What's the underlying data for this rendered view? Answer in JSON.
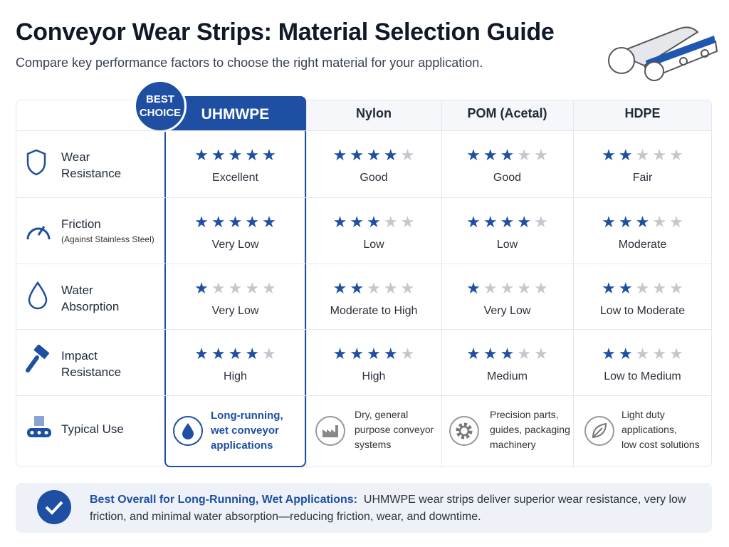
{
  "header": {
    "title": "Conveyor Wear Strips: Material Selection Guide",
    "subtitle": "Compare key performance factors to choose the right material for your application."
  },
  "badge": [
    "BEST",
    "CHOICE"
  ],
  "table": {
    "max_rating": 5,
    "columns": [
      "UHMWPE",
      "Nylon",
      "POM (Acetal)",
      "HDPE"
    ],
    "rows": [
      {
        "label": [
          "Wear",
          "Resistance"
        ],
        "cells": [
          {
            "rating": 5,
            "text": "Excellent"
          },
          {
            "rating": 4,
            "text": "Good"
          },
          {
            "rating": 3,
            "text": "Good"
          },
          {
            "rating": 2,
            "text": "Fair"
          }
        ]
      },
      {
        "label": [
          "Friction"
        ],
        "sublabel": "(Against Stainless Steel)",
        "cells": [
          {
            "rating": 5,
            "text": "Very Low"
          },
          {
            "rating": 3,
            "text": "Low"
          },
          {
            "rating": 4,
            "text": "Low"
          },
          {
            "rating": 3,
            "text": "Moderate"
          }
        ]
      },
      {
        "label": [
          "Water",
          "Absorption"
        ],
        "cells": [
          {
            "rating": 1,
            "text": "Very Low"
          },
          {
            "rating": 2,
            "text": "Moderate to High"
          },
          {
            "rating": 1,
            "text": "Very Low"
          },
          {
            "rating": 2,
            "text": "Low to Moderate"
          }
        ]
      },
      {
        "label": [
          "Impact",
          "Resistance"
        ],
        "cells": [
          {
            "rating": 4,
            "text": "High"
          },
          {
            "rating": 4,
            "text": "High"
          },
          {
            "rating": 3,
            "text": "Medium"
          },
          {
            "rating": 2,
            "text": "Low to Medium"
          }
        ]
      }
    ],
    "typical_use": {
      "label": "Typical Use",
      "cells": [
        [
          "Long-running,",
          "wet conveyor",
          "applications"
        ],
        [
          "Dry, general",
          "purpose conveyor",
          "systems"
        ],
        [
          "Precision parts,",
          "guides, packaging",
          "machinery"
        ],
        [
          "Light duty",
          "applications,",
          "low cost solutions"
        ]
      ]
    }
  },
  "footer": {
    "bold": "Best Overall for Long-Running, Wet Applications:",
    "text": "UHMWPE wear strips deliver superior wear resistance, very low friction, and minimal water absorption—reducing friction, wear, and downtime."
  }
}
